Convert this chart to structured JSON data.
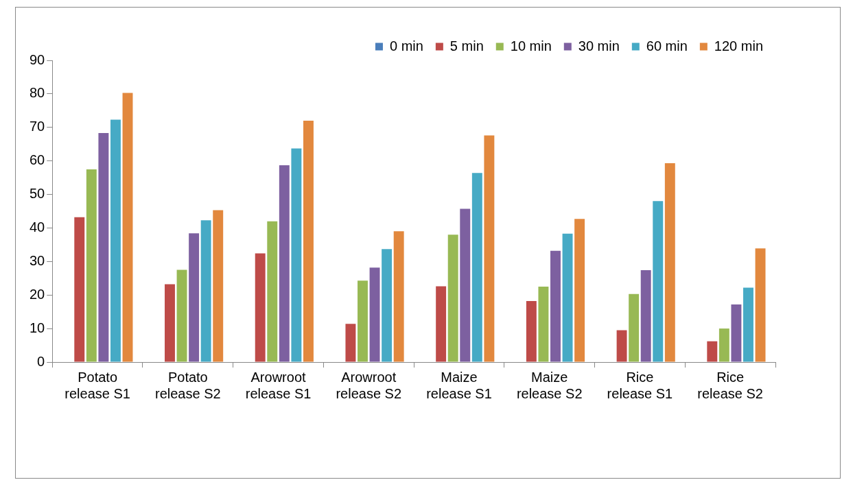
{
  "chart_data": {
    "type": "bar",
    "categories": [
      "Potato\nrelease S1",
      "Potato\nrelease S2",
      "Arowroot\nrelease S1",
      "Arowroot\nrelease S2",
      "Maize\nrelease S1",
      "Maize\nrelease S2",
      "Rice\nrelease S1",
      "Rice\nrelease S2"
    ],
    "series": [
      {
        "name": "0 min",
        "color": "#4a7ebb",
        "values": [
          0,
          0,
          0,
          0,
          0,
          0,
          0,
          0
        ]
      },
      {
        "name": "5 min",
        "color": "#be4b48",
        "values": [
          43.2,
          23.2,
          32.4,
          11.4,
          22.6,
          18.2,
          9.5,
          6.2
        ]
      },
      {
        "name": "10 min",
        "color": "#98b954",
        "values": [
          57.5,
          27.5,
          42,
          24.3,
          38,
          22.5,
          20.3,
          10
        ]
      },
      {
        "name": "30 min",
        "color": "#7d60a0",
        "values": [
          68.3,
          38.4,
          58.7,
          28.2,
          45.7,
          33.2,
          27.4,
          17.2
        ]
      },
      {
        "name": "60 min",
        "color": "#46aac5",
        "values": [
          72.3,
          42.3,
          63.7,
          33.7,
          56.4,
          38.3,
          48,
          22.2
        ]
      },
      {
        "name": "120 min",
        "color": "#e2883e",
        "values": [
          80.3,
          45.3,
          72,
          39,
          67.6,
          42.7,
          59.3,
          33.9
        ]
      }
    ],
    "ylim": [
      0,
      90
    ],
    "yticks": [
      0,
      10,
      20,
      30,
      40,
      50,
      60,
      70,
      80,
      90
    ],
    "grid": false,
    "legend": "top"
  }
}
